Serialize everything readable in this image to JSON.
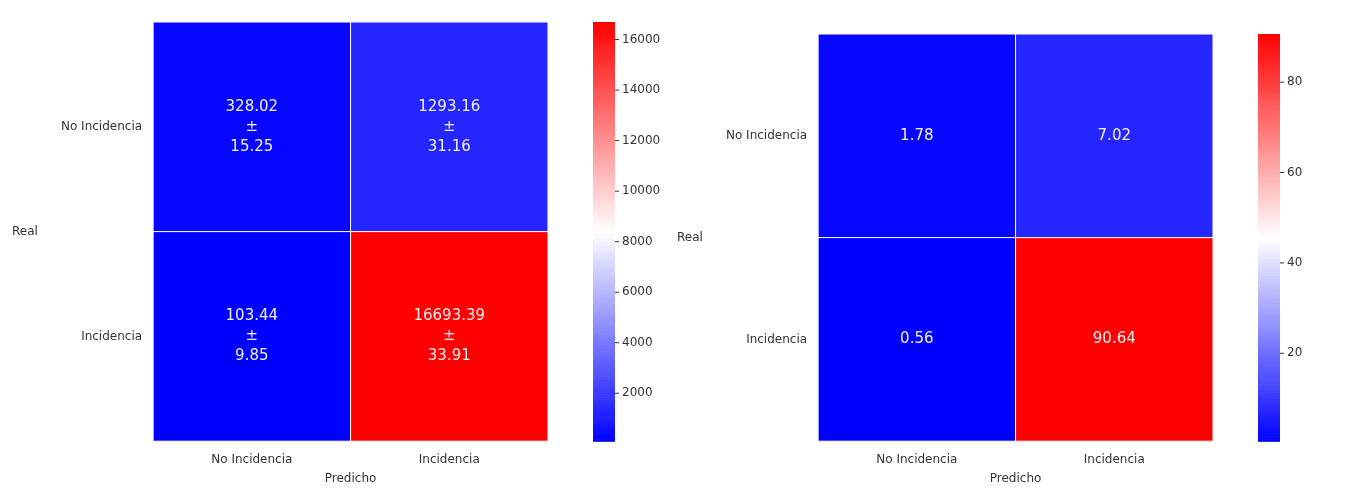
{
  "chart_data": [
    {
      "type": "heatmap",
      "xlabel": "Predicho",
      "ylabel": "Real",
      "categories": [
        "No Incidencia",
        "Incidencia"
      ],
      "y_categories": [
        "No Incidencia",
        "Incidencia"
      ],
      "cells": [
        [
          328.02,
          1293.16
        ],
        [
          103.44,
          16693.39
        ]
      ],
      "cell_labels": [
        [
          "328.02\n±\n15.25",
          "1293.16\n±\n31.16"
        ],
        [
          "103.44\n±\n9.85",
          "16693.39\n±\n33.91"
        ]
      ],
      "clim": [
        103.44,
        16693.39
      ],
      "cticks": [
        2000,
        4000,
        6000,
        8000,
        10000,
        12000,
        14000,
        16000
      ]
    },
    {
      "type": "heatmap",
      "xlabel": "Predicho",
      "ylabel": "Real",
      "categories": [
        "No Incidencia",
        "Incidencia"
      ],
      "y_categories": [
        "No Incidencia",
        "Incidencia"
      ],
      "cells": [
        [
          1.78,
          7.02
        ],
        [
          0.56,
          90.64
        ]
      ],
      "data_labels": true,
      "clim": [
        0.56,
        90.64
      ],
      "cticks": [
        20,
        40,
        60,
        80
      ]
    }
  ]
}
